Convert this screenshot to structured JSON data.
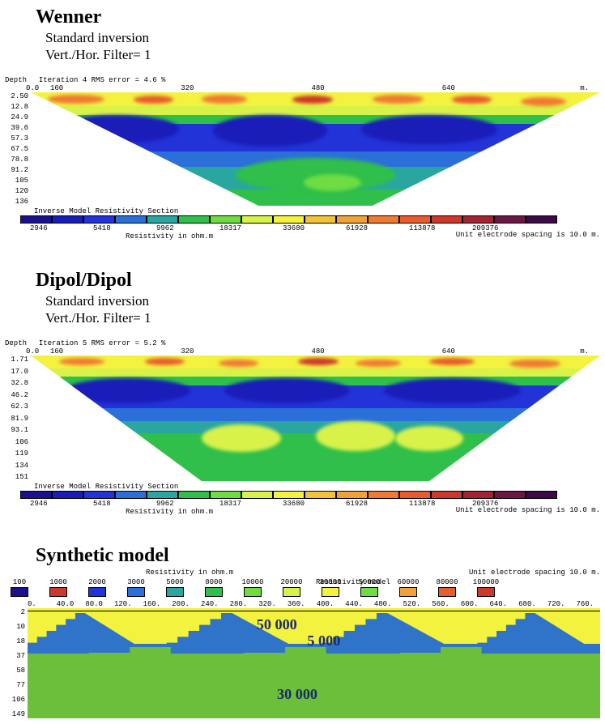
{
  "palette": {
    "c0": "#1b1190",
    "c1": "#1a1db8",
    "c2": "#2233d8",
    "c3": "#2b6fd8",
    "c4": "#2aa6a0",
    "c5": "#2fbf4a",
    "c6": "#6edc42",
    "c7": "#d8f24a",
    "c8": "#f2f23f",
    "c9": "#f2c23a",
    "c10": "#f0a238",
    "c11": "#ef7a33",
    "c12": "#e85b2e",
    "c13": "#cc382a",
    "c14": "#a12334",
    "c15": "#6b1745",
    "c16": "#3b0a47"
  },
  "res_labels": [
    "2946",
    "5418",
    "9962",
    "18317",
    "33680",
    "61928",
    "113878",
    "209376"
  ],
  "legend_caption": "Inverse Model Resistivity Section",
  "legend_sub": "Resistivity in ohm.m",
  "spacing_note": "Unit electrode spacing is 10.0 m.",
  "x_ticks_inv": [
    "0.0",
    "160",
    "320",
    "480",
    "640"
  ],
  "x_unit": "m.",
  "panels": {
    "wenner": {
      "title": "Wenner",
      "sub1": "Standard inversion",
      "sub2": "Vert./Hor. Filter= 1",
      "depth_label": "Depth",
      "meta": "Iteration 4 RMS error = 4.6 %",
      "depths": [
        "2.50",
        "12.8",
        "24.9",
        "39.6",
        "57.3",
        "67.5",
        "78.8",
        "91.2",
        "105",
        "120",
        "136"
      ]
    },
    "dipol": {
      "title": "Dipol/Dipol",
      "sub1": "Standard inversion",
      "sub2": "Vert./Hor. Filter= 1",
      "depth_label": "Depth",
      "meta": "Iteration 5 RMS error = 5.2 %",
      "depths": [
        "1.71",
        "17.0",
        "32.8",
        "46.2",
        "62.3",
        "81.9",
        "93.1",
        "106",
        "119",
        "134",
        "151"
      ]
    },
    "synthetic": {
      "title": "Synthetic model",
      "legend_caption": "Resistivity in ohm.m",
      "model_caption": "Resistivity model",
      "spacing_note": "Unit electrode spacing 10.0 m.",
      "legend_values": [
        "100",
        "1000",
        "2000",
        "3000",
        "5000",
        "8000",
        "10000",
        "20000",
        "30000",
        "50000",
        "60000",
        "80000",
        "100000"
      ],
      "legend_colors": [
        "#1b1190",
        "#cc382a",
        "#2233d8",
        "#2b6fd8",
        "#2aa6a0",
        "#2fbf4a",
        "#6edc42",
        "#d8f24a",
        "#f2f23f",
        "#6edc42",
        "#f0a238",
        "#e85b2e",
        "#cc382a"
      ],
      "x_ticks": [
        "0.",
        "40.0",
        "80.0",
        "120.",
        "160.",
        "200.",
        "240.",
        "280.",
        "320.",
        "360.",
        "400.",
        "440.",
        "480.",
        "520.",
        "560.",
        "600.",
        "640.",
        "680.",
        "720.",
        "760."
      ],
      "depths": [
        "2",
        "10",
        "18",
        "37",
        "58",
        "77",
        "106",
        "149"
      ],
      "layer_colors": {
        "top": "#f2f23f",
        "mid": "#2f74c9",
        "bottom": "#6bbf3a"
      },
      "labels": {
        "top": "50 000",
        "mid": "5 000",
        "bottom": "30 000"
      },
      "label_color": "#1b2a6b"
    }
  }
}
